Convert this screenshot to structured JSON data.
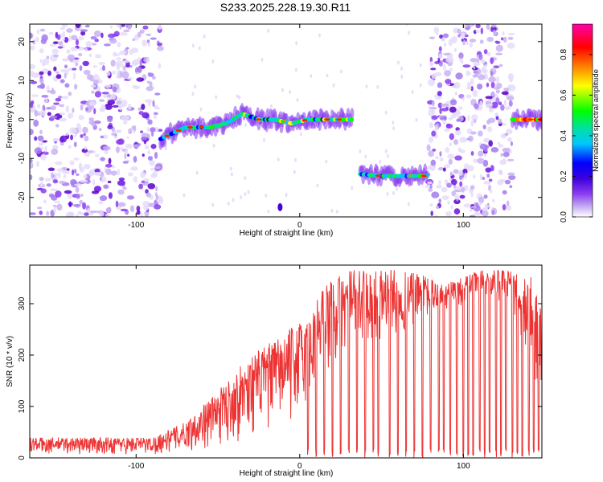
{
  "figure_title": "S233.2025.228.19.30.R11",
  "colormap": [
    "#ffffff",
    "#c9b3f2",
    "#8a3cf0",
    "#5a00c8",
    "#0000ff",
    "#00c8ff",
    "#00e0a0",
    "#00ff00",
    "#ffff00",
    "#ff8000",
    "#ff0000",
    "#ff00aa"
  ],
  "chart_data": [
    {
      "type": "heatmap",
      "title": "S233.2025.228.19.30.R11",
      "xlabel": "Height of straight line (km)",
      "ylabel": "Frequency (Hz)",
      "xlim": [
        -165,
        148
      ],
      "ylim": [
        -25,
        24.5
      ],
      "xticks": [
        -100,
        0,
        100
      ],
      "yticks": [
        -20,
        -10,
        0,
        10,
        20
      ],
      "colorbar": {
        "label": "Normalized spectral amplitude",
        "range": [
          0,
          0.95
        ],
        "ticks": [
          0,
          0.2,
          0.4,
          0.6,
          0.8
        ]
      },
      "regions": [
        {
          "name": "noise",
          "x_from": -165,
          "x_to": -85
        },
        {
          "name": "signal-branch-1",
          "x_from": -85,
          "x_to": 32,
          "freq_hz_track": [
            [
              -85,
              -5
            ],
            [
              -70,
              -2
            ],
            [
              -55,
              -2
            ],
            [
              -45,
              -1
            ],
            [
              -35,
              1.5
            ],
            [
              -25,
              0
            ],
            [
              -15,
              0
            ],
            [
              -5,
              -1
            ],
            [
              5,
              0
            ],
            [
              15,
              0
            ],
            [
              25,
              0
            ],
            [
              32,
              0
            ]
          ]
        },
        {
          "name": "gap",
          "x_from": 32,
          "x_to": 37
        },
        {
          "name": "signal-branch-2",
          "x_from": 37,
          "x_to": 78,
          "freq_hz_track": [
            [
              37,
              -14
            ],
            [
              50,
              -14.5
            ],
            [
              60,
              -14.5
            ],
            [
              70,
              -14.5
            ],
            [
              78,
              -14.5
            ]
          ]
        },
        {
          "name": "noise",
          "x_from": 78,
          "x_to": 130
        },
        {
          "name": "signal-branch-3",
          "x_from": 130,
          "x_to": 148,
          "freq_hz_track": [
            [
              130,
              0
            ],
            [
              140,
              0
            ],
            [
              148,
              0
            ]
          ]
        }
      ]
    },
    {
      "type": "line",
      "xlabel": "Height of straight line (km)",
      "ylabel": "SNR (10 * v/v)",
      "xlim": [
        -165,
        148
      ],
      "ylim": [
        0,
        375
      ],
      "xticks": [
        -100,
        0,
        100
      ],
      "yticks": [
        0,
        100,
        200,
        300
      ],
      "series": [
        {
          "name": "SNR",
          "color": "#ee3333",
          "envelope": [
            {
              "x": -165,
              "low": 5,
              "high": 40
            },
            {
              "x": -120,
              "low": 5,
              "high": 40
            },
            {
              "x": -90,
              "low": 5,
              "high": 40
            },
            {
              "x": -70,
              "low": 10,
              "high": 70
            },
            {
              "x": -50,
              "low": 20,
              "high": 130
            },
            {
              "x": -30,
              "low": 40,
              "high": 200
            },
            {
              "x": -10,
              "low": 60,
              "high": 240
            },
            {
              "x": 5,
              "low": 80,
              "high": 280
            },
            {
              "x": 15,
              "low": 150,
              "high": 340
            },
            {
              "x": 30,
              "low": 200,
              "high": 365
            },
            {
              "x": 50,
              "low": 220,
              "high": 370
            },
            {
              "x": 70,
              "low": 250,
              "high": 360
            },
            {
              "x": 90,
              "low": 280,
              "high": 340
            },
            {
              "x": 110,
              "low": 310,
              "high": 365
            },
            {
              "x": 130,
              "low": 300,
              "high": 365
            },
            {
              "x": 140,
              "low": 150,
              "high": 360
            },
            {
              "x": 148,
              "low": 120,
              "high": 320
            }
          ],
          "dropouts_x": [
            5,
            10,
            15,
            20,
            25,
            30,
            35,
            40,
            45,
            48,
            55,
            60,
            65,
            70,
            75,
            80,
            85,
            88,
            92,
            96,
            100,
            103,
            106,
            110,
            113,
            116,
            120,
            123,
            126,
            130,
            133,
            136,
            140,
            143,
            146
          ],
          "dropout_min": 0
        }
      ]
    }
  ]
}
